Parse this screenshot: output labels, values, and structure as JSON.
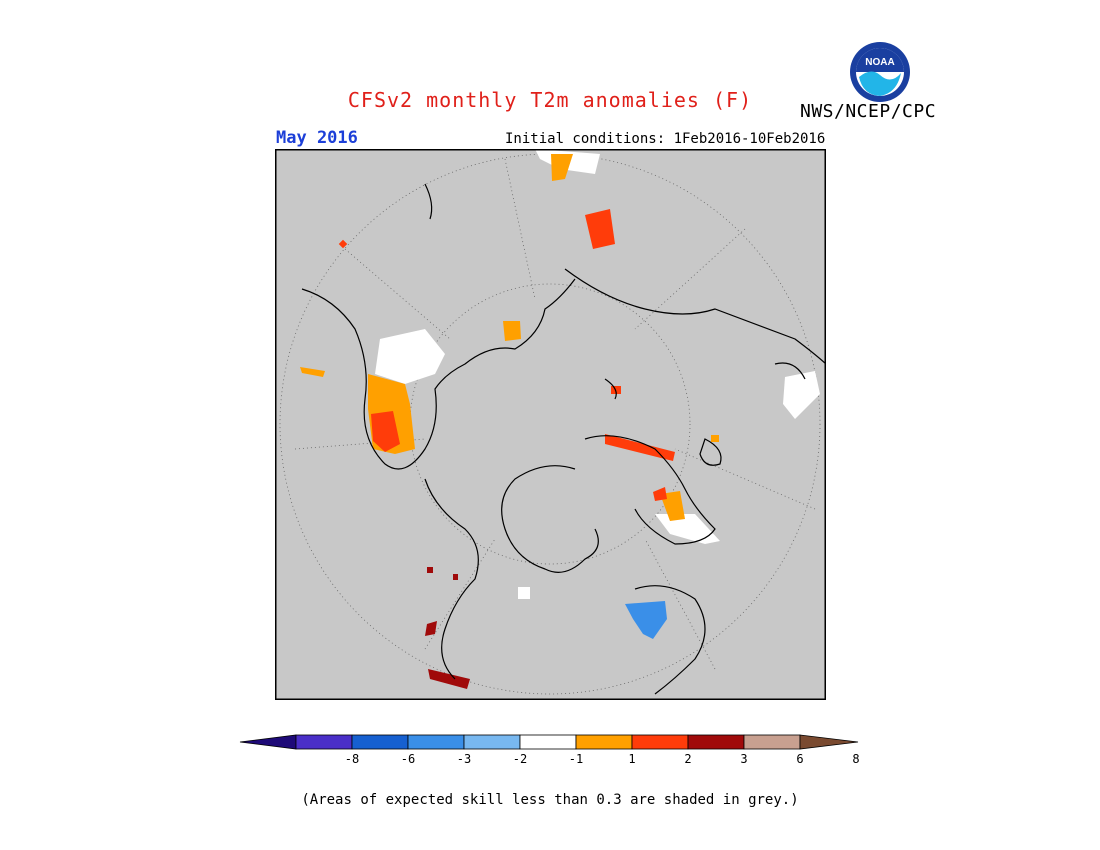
{
  "title": "CFSv2 monthly T2m anomalies (F)",
  "agency": "NWS/NCEP/CPC",
  "logo_text": "NOAA",
  "target_month": "May 2016",
  "initial_conditions": "Initial conditions: 1Feb2016-10Feb2016",
  "colorbar": {
    "colors": [
      "#1e0a78",
      "#4a2fc8",
      "#1660d0",
      "#3a8fe8",
      "#78b8f0",
      "#ffffff",
      "#ffa000",
      "#ff3c0a",
      "#a00a0a",
      "#c8a090",
      "#7a4a30"
    ],
    "tick_labels": [
      "-8",
      "-6",
      "-3",
      "-2",
      "-1",
      "1",
      "2",
      "3",
      "6",
      "8"
    ]
  },
  "footnote": "(Areas of expected skill less than 0.3 are shaded in grey.)",
  "map": {
    "projection": "north polar stereographic",
    "background": "#c8c8c8",
    "outside_color": "#c8c8c8"
  }
}
